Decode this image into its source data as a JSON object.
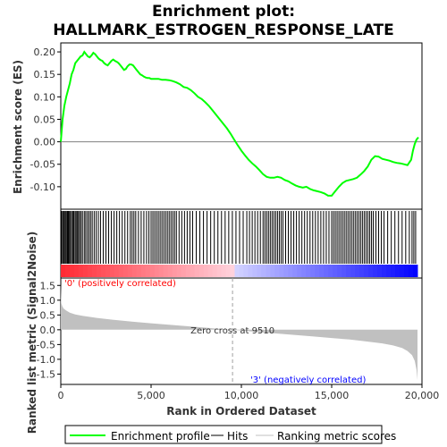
{
  "chart_data": {
    "type": "line",
    "title_line1": "Enrichment plot:",
    "title_line2": "HALLMARK_ESTROGEN_RESPONSE_LATE",
    "top_panel": {
      "ylabel": "Enrichment score (ES)",
      "ylim": [
        -0.15,
        0.22
      ],
      "yticks": [
        "0.20",
        "0.15",
        "0.10",
        "0.05",
        "0.00",
        "-0.05",
        "-0.10"
      ],
      "ytick_values": [
        0.2,
        0.15,
        0.1,
        0.05,
        0.0,
        -0.05,
        -0.1
      ],
      "grid": false,
      "series": [
        {
          "name": "Enrichment profile",
          "color": "#00ff00",
          "x": [
            0,
            100,
            200,
            300,
            400,
            500,
            600,
            700,
            800,
            900,
            1000,
            1100,
            1200,
            1300,
            1400,
            1500,
            1600,
            1700,
            1800,
            1900,
            2000,
            2100,
            2200,
            2300,
            2400,
            2500,
            2600,
            2700,
            2800,
            2900,
            3000,
            3100,
            3200,
            3300,
            3400,
            3500,
            3600,
            3700,
            3800,
            3900,
            4000,
            4100,
            4200,
            4300,
            4400,
            4500,
            4600,
            4700,
            4800,
            4900,
            5000,
            5200,
            5400,
            5600,
            5800,
            6000,
            6200,
            6400,
            6600,
            6800,
            7000,
            7200,
            7400,
            7600,
            7800,
            8000,
            8200,
            8400,
            8600,
            8800,
            9000,
            9200,
            9400,
            9600,
            9800,
            10000,
            10200,
            10400,
            10600,
            10800,
            11000,
            11200,
            11400,
            11600,
            11800,
            12000,
            12200,
            12400,
            12600,
            12800,
            13000,
            13200,
            13400,
            13600,
            13800,
            14000,
            14200,
            14400,
            14600,
            14800,
            15000,
            15200,
            15400,
            15600,
            15800,
            16000,
            16200,
            16400,
            16600,
            16800,
            17000,
            17200,
            17400,
            17600,
            17800,
            18000,
            18200,
            18400,
            18600,
            18800,
            19000,
            19200,
            19400,
            19500,
            19600,
            19700,
            19800
          ],
          "y": [
            0.0,
            0.05,
            0.08,
            0.1,
            0.115,
            0.13,
            0.15,
            0.16,
            0.175,
            0.18,
            0.185,
            0.19,
            0.192,
            0.2,
            0.195,
            0.19,
            0.188,
            0.192,
            0.198,
            0.195,
            0.19,
            0.185,
            0.182,
            0.18,
            0.175,
            0.172,
            0.17,
            0.175,
            0.18,
            0.183,
            0.18,
            0.178,
            0.175,
            0.17,
            0.165,
            0.16,
            0.162,
            0.168,
            0.172,
            0.172,
            0.17,
            0.165,
            0.16,
            0.155,
            0.15,
            0.148,
            0.145,
            0.143,
            0.142,
            0.142,
            0.14,
            0.14,
            0.14,
            0.138,
            0.138,
            0.137,
            0.135,
            0.132,
            0.128,
            0.122,
            0.12,
            0.115,
            0.108,
            0.1,
            0.095,
            0.088,
            0.08,
            0.07,
            0.06,
            0.05,
            0.04,
            0.03,
            0.018,
            0.005,
            -0.008,
            -0.02,
            -0.03,
            -0.04,
            -0.048,
            -0.055,
            -0.063,
            -0.072,
            -0.078,
            -0.08,
            -0.08,
            -0.078,
            -0.08,
            -0.085,
            -0.088,
            -0.093,
            -0.097,
            -0.1,
            -0.102,
            -0.1,
            -0.105,
            -0.108,
            -0.11,
            -0.112,
            -0.115,
            -0.12,
            -0.12,
            -0.11,
            -0.1,
            -0.092,
            -0.087,
            -0.085,
            -0.083,
            -0.08,
            -0.073,
            -0.065,
            -0.055,
            -0.04,
            -0.032,
            -0.033,
            -0.038,
            -0.04,
            -0.042,
            -0.045,
            -0.047,
            -0.048,
            -0.05,
            -0.052,
            -0.04,
            -0.02,
            -0.005,
            0.005,
            0.01
          ]
        }
      ]
    },
    "hits_panel": {
      "series_name": "Hits",
      "hit_positions": [
        30,
        90,
        150,
        200,
        260,
        310,
        370,
        420,
        480,
        530,
        600,
        660,
        720,
        790,
        850,
        910,
        980,
        1040,
        1120,
        1200,
        1300,
        1380,
        1470,
        1560,
        1650,
        1740,
        1850,
        1960,
        2080,
        2200,
        2350,
        2500,
        2650,
        2800,
        2950,
        3100,
        3250,
        3400,
        3550,
        3700,
        3850,
        3950,
        4050,
        4150,
        4300,
        4450,
        4600,
        4750,
        4880,
        5000,
        5100,
        5200,
        5300,
        5400,
        5500,
        5600,
        5700,
        5800,
        5900,
        6000,
        6100,
        6200,
        6300,
        6400,
        6550,
        6700,
        6850,
        7000,
        7150,
        7300,
        7500,
        7700,
        7900,
        8100,
        8300,
        8500,
        8700,
        8900,
        9100,
        9300,
        9500,
        9700,
        9900,
        10100,
        10300,
        10450,
        10600,
        10750,
        10900,
        11050,
        11200,
        11300,
        11400,
        11500,
        11600,
        11700,
        11800,
        11900,
        12000,
        12100,
        12200,
        12300,
        12450,
        12600,
        12750,
        12900,
        13050,
        13200,
        13350,
        13500,
        13650,
        13800,
        13950,
        14100,
        14250,
        14400,
        14550,
        14700,
        14850,
        15000,
        15100,
        15200,
        15300,
        15400,
        15500,
        15600,
        15700,
        15800,
        15900,
        16000,
        16100,
        16200,
        16300,
        16400,
        16500,
        16600,
        16700,
        16800,
        16900,
        17000,
        17100,
        17200,
        17300,
        17450,
        17600,
        17750,
        17900,
        18100,
        18300,
        18500,
        18700,
        18900,
        19100,
        19300,
        19450,
        19550,
        19650
      ]
    },
    "bottom_panel": {
      "series_name": "Ranking metric scores",
      "ylabel": "Ranked list metric (Signal2Noise)",
      "ylim": [
        -1.85,
        1.75
      ],
      "yticks": [
        "1.5",
        "1.0",
        "0.5",
        "0.0",
        "-0.5",
        "-1.0",
        "-1.5"
      ],
      "ytick_values": [
        1.5,
        1.0,
        0.5,
        0.0,
        -0.5,
        -1.0,
        -1.5
      ],
      "x": [
        0,
        30,
        80,
        150,
        300,
        500,
        800,
        1200,
        2000,
        3000,
        4000,
        5000,
        6000,
        7000,
        8000,
        9000,
        9510,
        10000,
        11000,
        12000,
        13000,
        14000,
        15000,
        16000,
        17000,
        17800,
        18400,
        18900,
        19200,
        19450,
        19600,
        19700,
        19750
      ],
      "values": [
        1.55,
        0.9,
        0.8,
        0.72,
        0.65,
        0.58,
        0.52,
        0.47,
        0.4,
        0.33,
        0.27,
        0.22,
        0.17,
        0.12,
        0.07,
        0.02,
        0.0,
        -0.03,
        -0.08,
        -0.13,
        -0.18,
        -0.23,
        -0.28,
        -0.33,
        -0.4,
        -0.46,
        -0.53,
        -0.62,
        -0.72,
        -0.86,
        -1.05,
        -1.35,
        -1.7
      ],
      "zero_cross_label": "Zero cross at 9510",
      "zero_cross": 9510,
      "positive_label": "'0' (positively correlated)",
      "negative_label": "'3' (negatively correlated)"
    },
    "xlabel": "Rank in Ordered Dataset",
    "xlim": [
      0,
      20000
    ],
    "xticks": [
      "0",
      "5,000",
      "10,000",
      "15,000",
      "20,000"
    ],
    "xtick_values": [
      0,
      5000,
      10000,
      15000,
      20000
    ],
    "list_length": 19750,
    "legend": [
      {
        "label": "Enrichment profile",
        "color": "#00ff00"
      },
      {
        "label": "Hits",
        "color": "#000000"
      },
      {
        "label": "Ranking metric scores",
        "color": "#c0c0c0"
      }
    ],
    "colors": {
      "profile": "#00ff00",
      "hits": "#000000",
      "metric_fill": "#c0c0c0",
      "positive_text": "#ff0000",
      "negative_text": "#0000ff",
      "positive_bar": "#ff0000",
      "negative_bar": "#0000ff"
    }
  }
}
